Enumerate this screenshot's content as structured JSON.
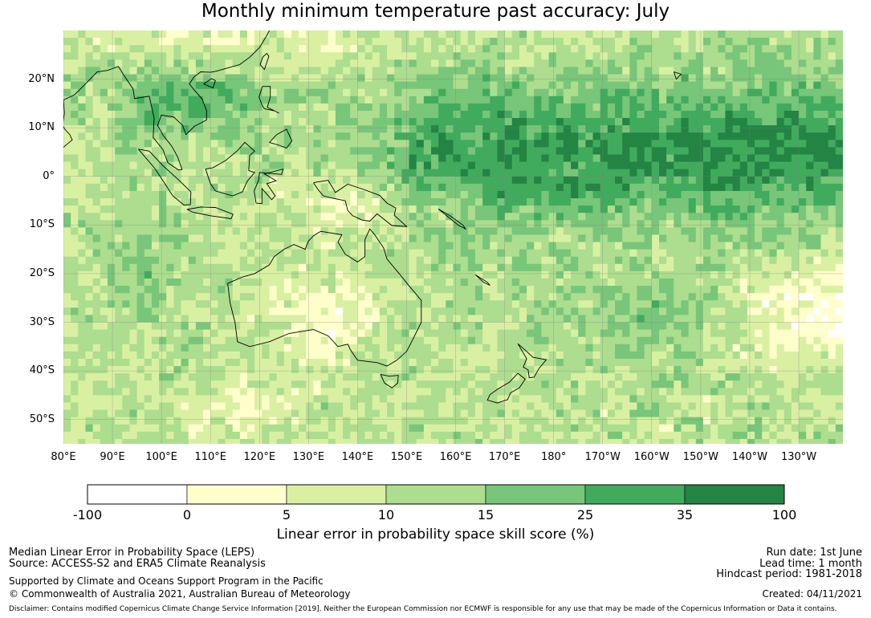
{
  "title": "Monthly minimum temperature past accuracy: July",
  "lat_ticks": [
    {
      "value": 20,
      "label": "20°N"
    },
    {
      "value": 10,
      "label": "10°N"
    },
    {
      "value": 0,
      "label": "0°"
    },
    {
      "value": -10,
      "label": "10°S"
    },
    {
      "value": -20,
      "label": "20°S"
    },
    {
      "value": -30,
      "label": "30°S"
    },
    {
      "value": -40,
      "label": "40°S"
    },
    {
      "value": -50,
      "label": "50°S"
    }
  ],
  "lon_ticks": [
    {
      "value": 80,
      "label": "80°E"
    },
    {
      "value": 90,
      "label": "90°E"
    },
    {
      "value": 100,
      "label": "100°E"
    },
    {
      "value": 110,
      "label": "110°E"
    },
    {
      "value": 120,
      "label": "120°E"
    },
    {
      "value": 130,
      "label": "130°E"
    },
    {
      "value": 140,
      "label": "140°E"
    },
    {
      "value": 150,
      "label": "150°E"
    },
    {
      "value": 160,
      "label": "160°E"
    },
    {
      "value": 170,
      "label": "170°E"
    },
    {
      "value": 180,
      "label": "180°"
    },
    {
      "value": 190,
      "label": "170°W"
    },
    {
      "value": 200,
      "label": "160°W"
    },
    {
      "value": 210,
      "label": "150°W"
    },
    {
      "value": 220,
      "label": "140°W"
    },
    {
      "value": 230,
      "label": "130°W"
    }
  ],
  "extent": {
    "lon_min": 80,
    "lon_max": 239,
    "lat_min": -55,
    "lat_max": 30
  },
  "colorbar": {
    "boundaries": [
      "-100",
      "0",
      "5",
      "10",
      "15",
      "25",
      "35",
      "100"
    ],
    "colors": [
      "#ffffff",
      "#ffffcc",
      "#d9f0a3",
      "#addd8e",
      "#78c679",
      "#41ab5d",
      "#238443"
    ],
    "title": "Linear error in probability space skill score (%)"
  },
  "meta": {
    "line1": "Median Linear Error in Probability Space (LEPS)",
    "line2": "Source: ACCESS-S2 and ERA5 Climate Reanalysis",
    "line3": "Supported by Climate and Oceans Support Program in the Pacific",
    "line4": "© Commonwealth of Australia 2021, Australian Bureau of Meteorology",
    "run_date": "Run date: 1st June",
    "lead_time": "Lead time: 1 month",
    "hindcast": "Hindcast period: 1981-2018",
    "created": "Created: 04/11/2021",
    "disclaimer": "Disclaimer: Contains modified Copernicus Climate Change Service Information [2019]. Neither the European Commission nor ECMWF is responsible for any use that may be made of the Copernicus Information or Data it contains."
  }
}
